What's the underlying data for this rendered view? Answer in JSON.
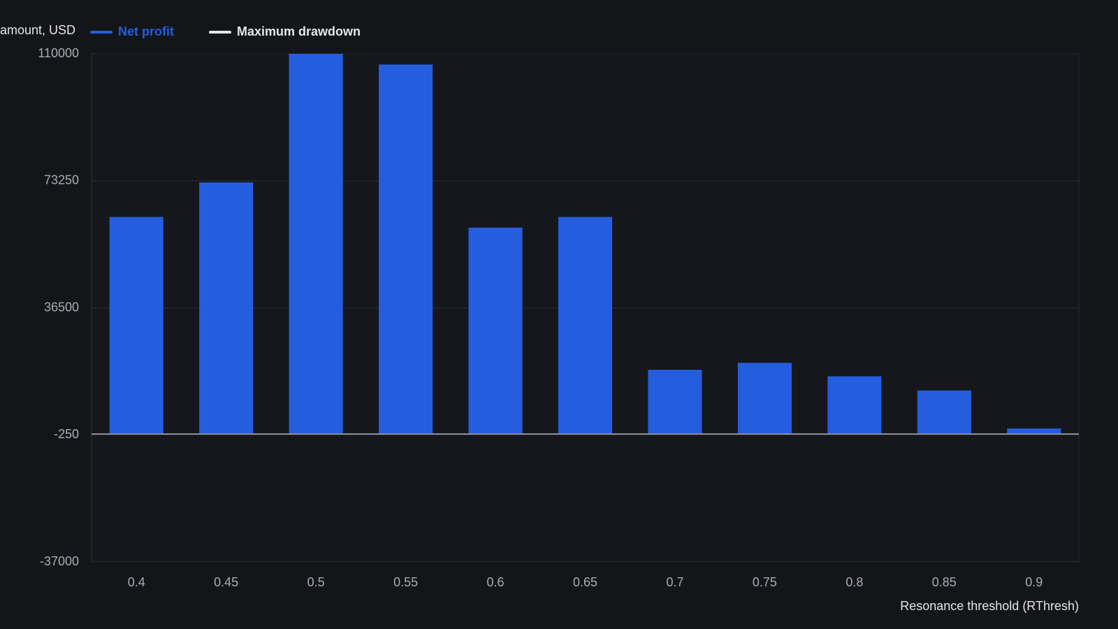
{
  "chart_data": {
    "type": "bar",
    "y_axis_label": "amount, USD",
    "x_axis_label": "Resonance threshold (RThresh)",
    "categories": [
      "0.4",
      "0.45",
      "0.5",
      "0.55",
      "0.6",
      "0.65",
      "0.7",
      "0.75",
      "0.8",
      "0.85",
      "0.9"
    ],
    "series": [
      {
        "name": "Net profit",
        "color": "#245ede",
        "values": [
          62800,
          72800,
          110000,
          106900,
          59700,
          62800,
          18600,
          20600,
          16700,
          12600,
          1600
        ]
      },
      {
        "name": "Maximum drawdown",
        "color": "#e6e6e6"
      }
    ],
    "ylim": [
      -37000,
      110000
    ],
    "yticks": [
      110000,
      73250,
      36500,
      -250,
      -37000
    ],
    "grid": true
  }
}
